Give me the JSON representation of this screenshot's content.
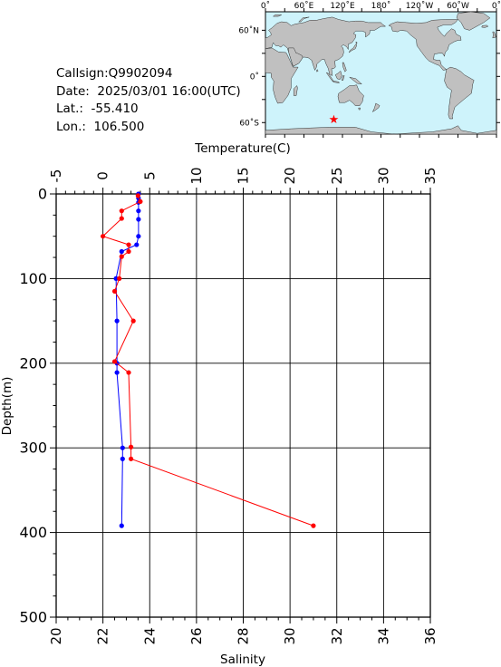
{
  "info": {
    "callsign": "Callsign:Q9902094",
    "date": "Date:  2025/03/01 16:00(UTC)",
    "lat": "Lat.:  -55.410",
    "lon": "Lon.:  106.500"
  },
  "map": {
    "top_labels": [
      "0˚",
      "60˚E",
      "120˚E",
      "180˚",
      "120˚W",
      "60˚W",
      "0˚"
    ],
    "lat_labels": [
      "60˚N",
      "0˚",
      "60˚S"
    ],
    "ocean_color": "#cef3fb",
    "land_color": "#c0c0c0",
    "marker": {
      "lat": -55.41,
      "lon": 106.5,
      "color": "#ff0000"
    }
  },
  "chart_data": {
    "type": "line",
    "xlabel_top": "Temperature(C)",
    "xlabel_bottom": "Salinity",
    "ylabel": "Depth(m)",
    "temperature_axis": {
      "range": [
        -5,
        35
      ],
      "ticks": [
        "-5",
        "0",
        "5",
        "10",
        "15",
        "20",
        "25",
        "30",
        "35"
      ]
    },
    "salinity_axis": {
      "range": [
        20,
        36
      ],
      "ticks": [
        "20",
        "22",
        "24",
        "26",
        "28",
        "30",
        "32",
        "34",
        "36"
      ]
    },
    "depth_axis": {
      "range": [
        0,
        500
      ],
      "ticks": [
        "0",
        "100",
        "200",
        "300",
        "400",
        "500"
      ],
      "inverted": true
    },
    "grid": true,
    "series": [
      {
        "variable": "temperature",
        "color": "#0000ff",
        "points": [
          {
            "value": 3.8,
            "depth": 0
          },
          {
            "value": 3.8,
            "depth": 5
          },
          {
            "value": 3.8,
            "depth": 10
          },
          {
            "value": 3.8,
            "depth": 20
          },
          {
            "value": 3.8,
            "depth": 30
          },
          {
            "value": 3.8,
            "depth": 50
          },
          {
            "value": 3.6,
            "depth": 60
          },
          {
            "value": 2.0,
            "depth": 68
          },
          {
            "value": 1.4,
            "depth": 100
          },
          {
            "value": 1.5,
            "depth": 150
          },
          {
            "value": 1.5,
            "depth": 200
          },
          {
            "value": 1.5,
            "depth": 211
          },
          {
            "value": 2.1,
            "depth": 300
          },
          {
            "value": 2.1,
            "depth": 313
          },
          {
            "value": 2.0,
            "depth": 392
          }
        ]
      },
      {
        "variable": "salinity",
        "color": "#ff0000",
        "points": [
          {
            "value": 23.5,
            "depth": 2
          },
          {
            "value": 23.6,
            "depth": 9
          },
          {
            "value": 22.8,
            "depth": 20
          },
          {
            "value": 22.8,
            "depth": 29
          },
          {
            "value": 22.0,
            "depth": 50
          },
          {
            "value": 23.1,
            "depth": 60
          },
          {
            "value": 23.1,
            "depth": 68
          },
          {
            "value": 22.8,
            "depth": 74
          },
          {
            "value": 22.7,
            "depth": 100
          },
          {
            "value": 22.5,
            "depth": 115
          },
          {
            "value": 23.3,
            "depth": 150
          },
          {
            "value": 22.5,
            "depth": 198
          },
          {
            "value": 23.1,
            "depth": 211
          },
          {
            "value": 23.2,
            "depth": 299
          },
          {
            "value": 23.2,
            "depth": 313
          },
          {
            "value": 31.0,
            "depth": 392
          }
        ]
      }
    ]
  }
}
